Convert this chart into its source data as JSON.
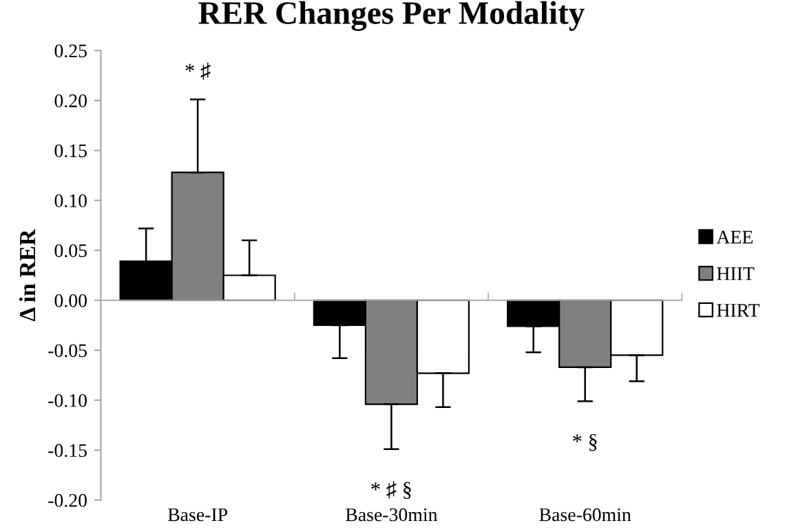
{
  "chart_data": {
    "type": "bar",
    "title": "RER Changes Per Modality",
    "ylabel": "Δ in RER",
    "categories": [
      "Base-IP",
      "Base-30min",
      "Base-60min"
    ],
    "series": [
      {
        "name": "AEE",
        "color": "#000000",
        "values": [
          0.039,
          -0.025,
          -0.026
        ],
        "errors": [
          [
            0.039,
            0.072
          ],
          [
            -0.058,
            -0.025
          ],
          [
            -0.052,
            -0.026
          ]
        ]
      },
      {
        "name": "HIIT",
        "color": "#808080",
        "values": [
          0.128,
          -0.104,
          -0.067
        ],
        "errors": [
          [
            0.128,
            0.201
          ],
          [
            -0.149,
            -0.104
          ],
          [
            -0.101,
            -0.067
          ]
        ]
      },
      {
        "name": "HIRT",
        "color": "#ffffff",
        "values": [
          0.025,
          -0.073,
          -0.055
        ],
        "errors": [
          [
            0.025,
            0.06
          ],
          [
            -0.107,
            -0.073
          ],
          [
            -0.081,
            -0.055
          ]
        ]
      }
    ],
    "ylim": [
      -0.2,
      0.25
    ],
    "yticks": [
      {
        "value": -0.2,
        "label": "-0.20"
      },
      {
        "value": -0.15,
        "label": "-0.15"
      },
      {
        "value": -0.1,
        "label": "-0.10"
      },
      {
        "value": -0.05,
        "label": "-0.05"
      },
      {
        "value": 0,
        "label": "0.00"
      },
      {
        "value": 0.05,
        "label": "0.05"
      },
      {
        "value": 0.1,
        "label": "0.10"
      },
      {
        "value": 0.15,
        "label": "0.15"
      },
      {
        "value": 0.2,
        "label": "0.20"
      },
      {
        "value": 0.25,
        "label": "0.25"
      }
    ],
    "annotations": [
      "* ♯",
      "* ♯ §",
      "* §"
    ],
    "legend": "right"
  }
}
